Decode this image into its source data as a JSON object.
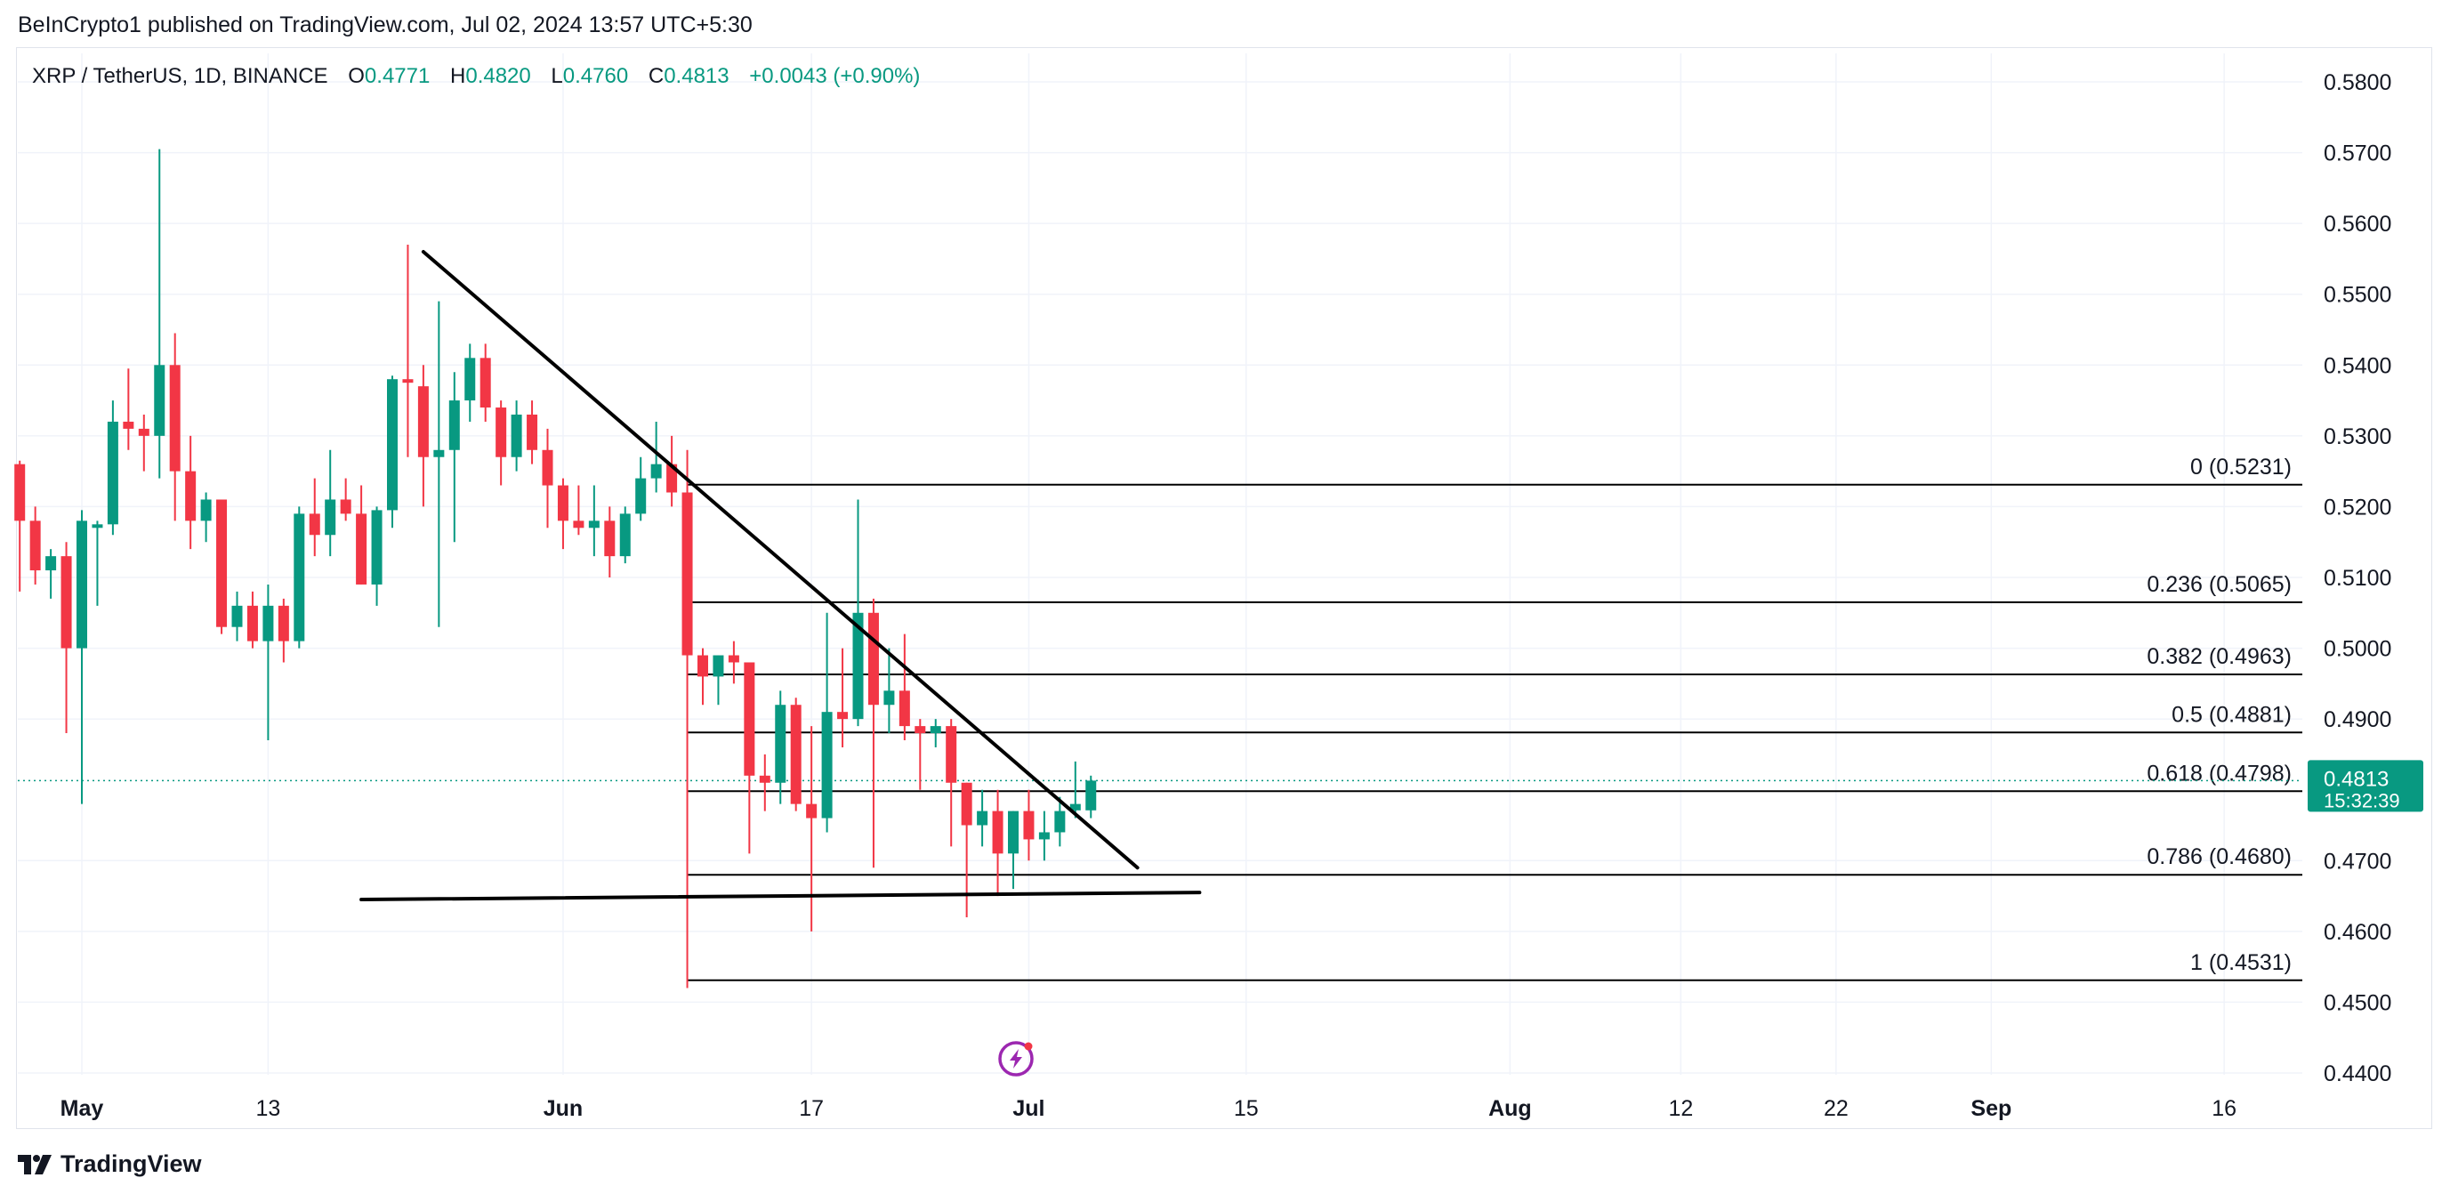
{
  "publish_line": "BeInCrypto1 published on TradingView.com, Jul 02, 2024 13:57 UTC+5:30",
  "brand": {
    "name": "TradingView",
    "icon": "tradingview-logo-icon"
  },
  "legend": {
    "symbol": "XRP / TetherUS, 1D, BINANCE",
    "open_label": "O",
    "open": "0.4771",
    "high_label": "H",
    "high": "0.4820",
    "low_label": "L",
    "low": "0.4760",
    "close_label": "C",
    "close": "0.4813",
    "change": "+0.0043 (+0.90%)"
  },
  "colors": {
    "up": "#089981",
    "down": "#f23645",
    "grid": "#f0f3fa",
    "text": "#131722",
    "line": "#000000"
  },
  "price_badge": {
    "price": "0.4813",
    "countdown": "15:32:39"
  },
  "watermark_icon": "lightning-icon",
  "chart_data": {
    "type": "candlestick",
    "interval": "1D",
    "y_ticks": [
      "0.5800",
      "0.5700",
      "0.5600",
      "0.5500",
      "0.5400",
      "0.5300",
      "0.5200",
      "0.5100",
      "0.5000",
      "0.4900",
      "0.4700",
      "0.4600",
      "0.4500",
      "0.4400"
    ],
    "ylim": [
      0.44,
      0.58
    ],
    "x_tick_labels": [
      {
        "date": "2024-05-01",
        "label": "May",
        "bold": true
      },
      {
        "date": "2024-05-13",
        "label": "13"
      },
      {
        "date": "2024-06-01",
        "label": "Jun",
        "bold": true
      },
      {
        "date": "2024-06-17",
        "label": "17"
      },
      {
        "date": "2024-07-01",
        "label": "Jul",
        "bold": true
      },
      {
        "date": "2024-07-15",
        "label": "15"
      },
      {
        "date": "2024-08-01",
        "label": "Aug",
        "bold": true
      },
      {
        "date": "2024-08-12",
        "label": "12"
      },
      {
        "date": "2024-08-22",
        "label": "22"
      },
      {
        "date": "2024-09-01",
        "label": "Sep",
        "bold": true
      },
      {
        "date": "2024-09-16",
        "label": "16"
      }
    ],
    "candles": [
      {
        "d": "2024-04-27",
        "o": 0.526,
        "h": 0.5265,
        "l": 0.508,
        "c": 0.518
      },
      {
        "d": "2024-04-28",
        "o": 0.518,
        "h": 0.52,
        "l": 0.509,
        "c": 0.511
      },
      {
        "d": "2024-04-29",
        "o": 0.511,
        "h": 0.514,
        "l": 0.507,
        "c": 0.513
      },
      {
        "d": "2024-04-30",
        "o": 0.513,
        "h": 0.515,
        "l": 0.488,
        "c": 0.5
      },
      {
        "d": "2024-05-01",
        "o": 0.5,
        "h": 0.5195,
        "l": 0.478,
        "c": 0.518
      },
      {
        "d": "2024-05-02",
        "o": 0.517,
        "h": 0.518,
        "l": 0.506,
        "c": 0.5175
      },
      {
        "d": "2024-05-03",
        "o": 0.5175,
        "h": 0.535,
        "l": 0.516,
        "c": 0.532
      },
      {
        "d": "2024-05-04",
        "o": 0.532,
        "h": 0.5395,
        "l": 0.528,
        "c": 0.531
      },
      {
        "d": "2024-05-05",
        "o": 0.531,
        "h": 0.533,
        "l": 0.525,
        "c": 0.53
      },
      {
        "d": "2024-05-06",
        "o": 0.53,
        "h": 0.5705,
        "l": 0.524,
        "c": 0.54
      },
      {
        "d": "2024-05-07",
        "o": 0.54,
        "h": 0.5445,
        "l": 0.518,
        "c": 0.525
      },
      {
        "d": "2024-05-08",
        "o": 0.525,
        "h": 0.53,
        "l": 0.514,
        "c": 0.518
      },
      {
        "d": "2024-05-09",
        "o": 0.518,
        "h": 0.522,
        "l": 0.515,
        "c": 0.521
      },
      {
        "d": "2024-05-10",
        "o": 0.521,
        "h": 0.521,
        "l": 0.502,
        "c": 0.503
      },
      {
        "d": "2024-05-11",
        "o": 0.503,
        "h": 0.508,
        "l": 0.501,
        "c": 0.506
      },
      {
        "d": "2024-05-12",
        "o": 0.506,
        "h": 0.508,
        "l": 0.5,
        "c": 0.501
      },
      {
        "d": "2024-05-13",
        "o": 0.501,
        "h": 0.509,
        "l": 0.487,
        "c": 0.506
      },
      {
        "d": "2024-05-14",
        "o": 0.506,
        "h": 0.507,
        "l": 0.498,
        "c": 0.501
      },
      {
        "d": "2024-05-15",
        "o": 0.501,
        "h": 0.52,
        "l": 0.5,
        "c": 0.519
      },
      {
        "d": "2024-05-16",
        "o": 0.519,
        "h": 0.524,
        "l": 0.513,
        "c": 0.516
      },
      {
        "d": "2024-05-17",
        "o": 0.516,
        "h": 0.528,
        "l": 0.513,
        "c": 0.521
      },
      {
        "d": "2024-05-18",
        "o": 0.521,
        "h": 0.524,
        "l": 0.518,
        "c": 0.519
      },
      {
        "d": "2024-05-19",
        "o": 0.519,
        "h": 0.523,
        "l": 0.509,
        "c": 0.509
      },
      {
        "d": "2024-05-20",
        "o": 0.509,
        "h": 0.52,
        "l": 0.506,
        "c": 0.5195
      },
      {
        "d": "2024-05-21",
        "o": 0.5195,
        "h": 0.5385,
        "l": 0.517,
        "c": 0.538
      },
      {
        "d": "2024-05-22",
        "o": 0.538,
        "h": 0.557,
        "l": 0.527,
        "c": 0.5375
      },
      {
        "d": "2024-05-23",
        "o": 0.537,
        "h": 0.54,
        "l": 0.52,
        "c": 0.527
      },
      {
        "d": "2024-05-24",
        "o": 0.527,
        "h": 0.549,
        "l": 0.503,
        "c": 0.528
      },
      {
        "d": "2024-05-25",
        "o": 0.528,
        "h": 0.539,
        "l": 0.515,
        "c": 0.535
      },
      {
        "d": "2024-05-26",
        "o": 0.535,
        "h": 0.543,
        "l": 0.532,
        "c": 0.541
      },
      {
        "d": "2024-05-27",
        "o": 0.541,
        "h": 0.543,
        "l": 0.532,
        "c": 0.534
      },
      {
        "d": "2024-05-28",
        "o": 0.534,
        "h": 0.535,
        "l": 0.523,
        "c": 0.527
      },
      {
        "d": "2024-05-29",
        "o": 0.527,
        "h": 0.535,
        "l": 0.525,
        "c": 0.533
      },
      {
        "d": "2024-05-30",
        "o": 0.533,
        "h": 0.535,
        "l": 0.526,
        "c": 0.528
      },
      {
        "d": "2024-05-31",
        "o": 0.528,
        "h": 0.531,
        "l": 0.517,
        "c": 0.523
      },
      {
        "d": "2024-06-01",
        "o": 0.523,
        "h": 0.524,
        "l": 0.514,
        "c": 0.518
      },
      {
        "d": "2024-06-02",
        "o": 0.518,
        "h": 0.523,
        "l": 0.516,
        "c": 0.517
      },
      {
        "d": "2024-06-03",
        "o": 0.517,
        "h": 0.523,
        "l": 0.513,
        "c": 0.518
      },
      {
        "d": "2024-06-04",
        "o": 0.518,
        "h": 0.52,
        "l": 0.51,
        "c": 0.513
      },
      {
        "d": "2024-06-05",
        "o": 0.513,
        "h": 0.52,
        "l": 0.512,
        "c": 0.519
      },
      {
        "d": "2024-06-06",
        "o": 0.519,
        "h": 0.527,
        "l": 0.518,
        "c": 0.524
      },
      {
        "d": "2024-06-07",
        "o": 0.524,
        "h": 0.532,
        "l": 0.522,
        "c": 0.526
      },
      {
        "d": "2024-06-08",
        "o": 0.526,
        "h": 0.53,
        "l": 0.52,
        "c": 0.522
      },
      {
        "d": "2024-06-09",
        "o": 0.522,
        "h": 0.528,
        "l": 0.452,
        "c": 0.499
      },
      {
        "d": "2024-06-10",
        "o": 0.499,
        "h": 0.5,
        "l": 0.492,
        "c": 0.496
      },
      {
        "d": "2024-06-11",
        "o": 0.496,
        "h": 0.499,
        "l": 0.492,
        "c": 0.499
      },
      {
        "d": "2024-06-12",
        "o": 0.499,
        "h": 0.501,
        "l": 0.495,
        "c": 0.498
      },
      {
        "d": "2024-06-13",
        "o": 0.498,
        "h": 0.498,
        "l": 0.471,
        "c": 0.482
      },
      {
        "d": "2024-06-14",
        "o": 0.482,
        "h": 0.485,
        "l": 0.477,
        "c": 0.481
      },
      {
        "d": "2024-06-15",
        "o": 0.481,
        "h": 0.494,
        "l": 0.478,
        "c": 0.492
      },
      {
        "d": "2024-06-16",
        "o": 0.492,
        "h": 0.493,
        "l": 0.477,
        "c": 0.478
      },
      {
        "d": "2024-06-17",
        "o": 0.478,
        "h": 0.489,
        "l": 0.46,
        "c": 0.476
      },
      {
        "d": "2024-06-18",
        "o": 0.476,
        "h": 0.505,
        "l": 0.474,
        "c": 0.491
      },
      {
        "d": "2024-06-19",
        "o": 0.491,
        "h": 0.5,
        "l": 0.486,
        "c": 0.49
      },
      {
        "d": "2024-06-20",
        "o": 0.49,
        "h": 0.521,
        "l": 0.489,
        "c": 0.505
      },
      {
        "d": "2024-06-21",
        "o": 0.505,
        "h": 0.507,
        "l": 0.469,
        "c": 0.492
      },
      {
        "d": "2024-06-22",
        "o": 0.492,
        "h": 0.5,
        "l": 0.488,
        "c": 0.494
      },
      {
        "d": "2024-06-23",
        "o": 0.494,
        "h": 0.502,
        "l": 0.487,
        "c": 0.489
      },
      {
        "d": "2024-06-24",
        "o": 0.489,
        "h": 0.49,
        "l": 0.48,
        "c": 0.488
      },
      {
        "d": "2024-06-25",
        "o": 0.488,
        "h": 0.49,
        "l": 0.486,
        "c": 0.489
      },
      {
        "d": "2024-06-26",
        "o": 0.489,
        "h": 0.49,
        "l": 0.472,
        "c": 0.481
      },
      {
        "d": "2024-06-27",
        "o": 0.481,
        "h": 0.481,
        "l": 0.462,
        "c": 0.475
      },
      {
        "d": "2024-06-28",
        "o": 0.475,
        "h": 0.48,
        "l": 0.472,
        "c": 0.477
      },
      {
        "d": "2024-06-29",
        "o": 0.477,
        "h": 0.48,
        "l": 0.465,
        "c": 0.471
      },
      {
        "d": "2024-06-30",
        "o": 0.471,
        "h": 0.477,
        "l": 0.466,
        "c": 0.477
      },
      {
        "d": "2024-07-01",
        "o": 0.477,
        "h": 0.48,
        "l": 0.47,
        "c": 0.473
      },
      {
        "d": "2024-07-02",
        "o": 0.473,
        "h": 0.477,
        "l": 0.47,
        "c": 0.474
      },
      {
        "d": "2024-07-03",
        "o": 0.474,
        "h": 0.479,
        "l": 0.472,
        "c": 0.477
      },
      {
        "d": "2024-07-04",
        "o": 0.4771,
        "h": 0.484,
        "l": 0.476,
        "c": 0.478
      },
      {
        "d": "2024-07-05",
        "o": 0.4771,
        "h": 0.482,
        "l": 0.476,
        "c": 0.4813
      }
    ],
    "last_price": 0.4813,
    "fib_levels": [
      {
        "ratio": "0",
        "price": 0.5231,
        "label": "0 (0.5231)"
      },
      {
        "ratio": "0.236",
        "price": 0.5065,
        "label": "0.236 (0.5065)"
      },
      {
        "ratio": "0.382",
        "price": 0.4963,
        "label": "0.382 (0.4963)"
      },
      {
        "ratio": "0.5",
        "price": 0.4881,
        "label": "0.5 (0.4881)"
      },
      {
        "ratio": "0.618",
        "price": 0.4798,
        "label": "0.618 (0.4798)"
      },
      {
        "ratio": "0.786",
        "price": 0.468,
        "label": "0.786 (0.4680)"
      },
      {
        "ratio": "1",
        "price": 0.4531,
        "label": "1 (0.4531)"
      }
    ],
    "fib_start_date": "2024-06-09",
    "trendlines": [
      {
        "name": "descending-resistance",
        "start": {
          "d": "2024-05-23",
          "p": 0.556
        },
        "end": {
          "d": "2024-07-08",
          "p": 0.469
        }
      },
      {
        "name": "horizontal-support",
        "start": {
          "d": "2024-05-19",
          "p": 0.4645
        },
        "end": {
          "d": "2024-07-12",
          "p": 0.4655
        }
      }
    ]
  }
}
